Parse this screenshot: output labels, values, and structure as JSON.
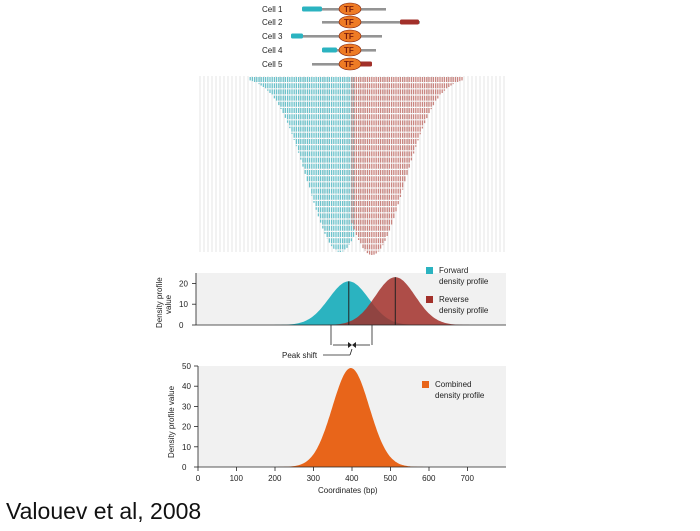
{
  "colors": {
    "forward": "#2bb3c0",
    "reverse": "#a2302a",
    "combined": "#e8651a",
    "tf_fill": "#ee7b25",
    "read_forward": "#6cc2cb",
    "read_reverse": "#c98580",
    "panel_bg": "#f1f1f1"
  },
  "cells": [
    "Cell 1",
    "Cell 2",
    "Cell 3",
    "Cell 4",
    "Cell 5"
  ],
  "tf_label": "TF",
  "top_chart": {
    "ylabel": "Density profile value",
    "yticks": [
      "0",
      "10",
      "20"
    ],
    "legend": [
      {
        "label_line1": "Forward",
        "label_line2": "density profile"
      },
      {
        "label_line1": "Reverse",
        "label_line2": "density profile"
      }
    ]
  },
  "peak_shift_label": "Peak shift",
  "bottom_chart": {
    "ylabel": "Density profile value",
    "xlabel": "Coordinates (bp)",
    "yticks": [
      "0",
      "10",
      "20",
      "30",
      "40",
      "50"
    ],
    "xticks": [
      "0",
      "100",
      "200",
      "300",
      "400",
      "500",
      "600",
      "700"
    ],
    "legend_line1": "Combined",
    "legend_line2": "density profile"
  },
  "chart_data": [
    {
      "type": "area",
      "series": [
        {
          "name": "Forward density profile",
          "peak_x": 345,
          "peak_y": 21,
          "sd": 45
        },
        {
          "name": "Reverse density profile",
          "peak_x": 450,
          "peak_y": 23,
          "sd": 45
        }
      ],
      "xlim": [
        0,
        700
      ],
      "ylim": [
        0,
        25
      ],
      "ylabel": "Density profile value",
      "annotation": "Peak shift"
    },
    {
      "type": "area",
      "series": [
        {
          "name": "Combined density profile",
          "peak_x": 397,
          "peak_y": 49,
          "sd": 48
        }
      ],
      "xlim": [
        0,
        700
      ],
      "ylim": [
        0,
        50
      ],
      "xlabel": "Coordinates (bp)",
      "ylabel": "Density profile value"
    }
  ],
  "citation": "Valouev et al, 2008"
}
